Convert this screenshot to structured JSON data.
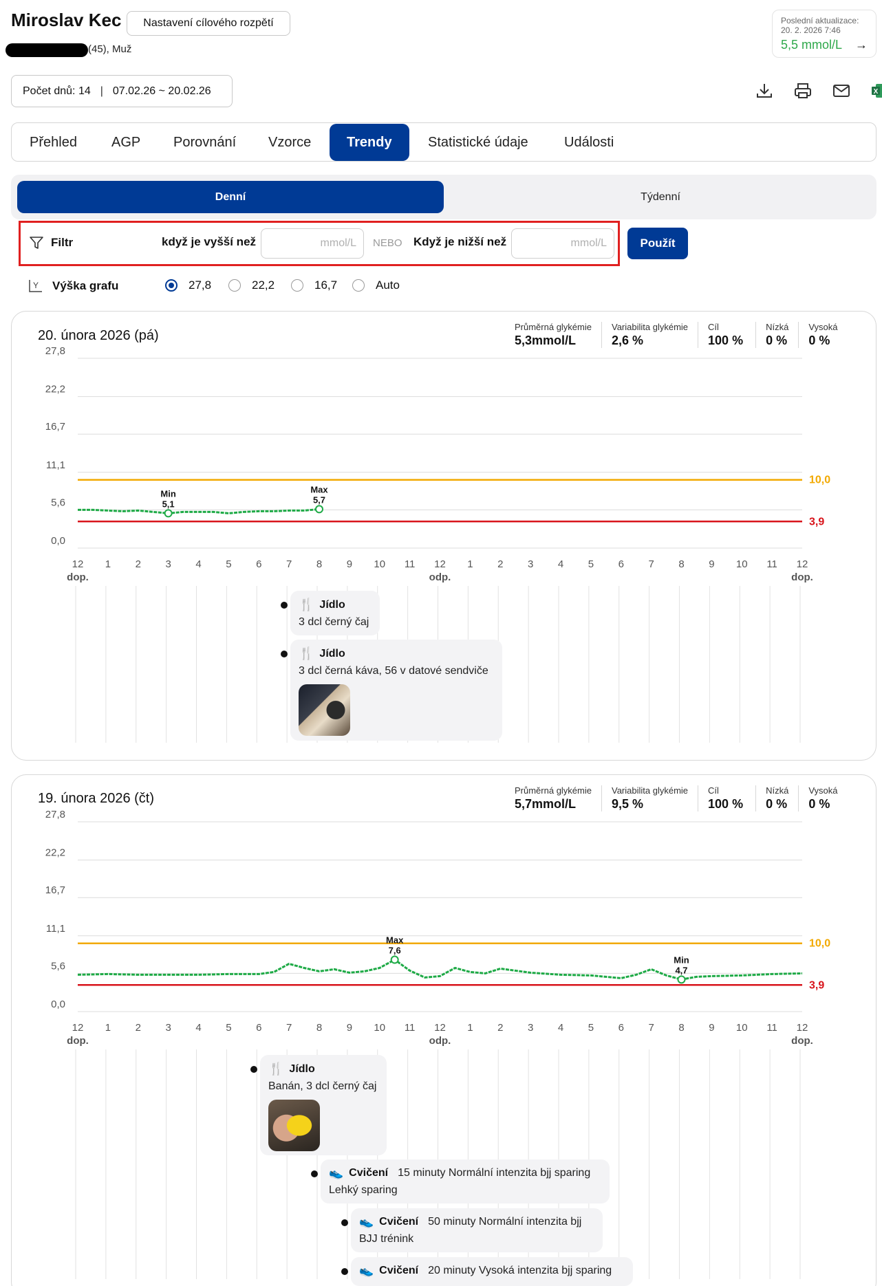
{
  "header": {
    "patient_name": "Miroslav Kec",
    "patient_info": "(45), Muž",
    "target_button": "Nastavení cílového rozpětí",
    "last_update_label": "Poslední aktualizace:",
    "last_update_time": "20. 2. 2026 7:46",
    "last_update_value": "5,5 mmol/L",
    "days_count": "Počet dnů: 14",
    "date_range": "07.02.26 ~ 20.02.26",
    "toolbar_icons": [
      "download-icon",
      "print-icon",
      "mail-icon",
      "excel-icon"
    ]
  },
  "tabs": [
    "Přehled",
    "AGP",
    "Porovnání",
    "Vzorce",
    "Trendy",
    "Statistické údaje",
    "Události"
  ],
  "active_tab": "Trendy",
  "view_toggle": {
    "daily": "Denní",
    "weekly": "Týdenní",
    "active": "Denní"
  },
  "filter": {
    "label": "Filtr",
    "above_label": "když je vyšší než",
    "above_placeholder": "mmol/L",
    "or_label": "NEBO",
    "below_label": "Když je nižší než",
    "below_placeholder": "mmol/L",
    "apply_button": "Použít"
  },
  "chart_height": {
    "label": "Výška grafu",
    "options": [
      "27,8",
      "22,2",
      "16,7",
      "Auto"
    ],
    "selected": "27,8"
  },
  "stat_labels": {
    "avg": "Průměrná glykémie",
    "variability": "Variabilita glykémie",
    "target": "Cíl",
    "low": "Nízká",
    "high": "Vysoká"
  },
  "x_ticks": [
    "12",
    "1",
    "2",
    "3",
    "4",
    "5",
    "6",
    "7",
    "8",
    "9",
    "10",
    "11",
    "12",
    "1",
    "2",
    "3",
    "4",
    "5",
    "6",
    "7",
    "8",
    "9",
    "10",
    "11",
    "12"
  ],
  "x_subticks": {
    "am": "dop.",
    "pm": "odp."
  },
  "y_ticks": [
    "27,8",
    "22,2",
    "16,7",
    "11,1",
    "5,6",
    "0,0"
  ],
  "limits": {
    "high": "10,0",
    "low": "3,9",
    "high_color": "#f2a900",
    "low_color": "#d8141b",
    "line_color": "#1eaa46"
  },
  "days": [
    {
      "title": "20. února 2026 (pá)",
      "stats": {
        "avg": "5,3mmol/L",
        "variability": "2,6 %",
        "target": "100 %",
        "low": "0 %",
        "high": "0 %"
      },
      "min_label": "Min",
      "min_value": "5,1",
      "max_label": "Max",
      "max_value": "5,7",
      "events": [
        {
          "type": "Jídlo",
          "icon": "fork-knife-icon",
          "desc": "3 dcl černý čaj"
        },
        {
          "type": "Jídlo",
          "icon": "fork-knife-icon",
          "desc": "3 dcl černá káva, 56 v datové sendviče",
          "photo": "sandwich-photo"
        }
      ]
    },
    {
      "title": "19. února 2026 (čt)",
      "stats": {
        "avg": "5,7mmol/L",
        "variability": "9,5 %",
        "target": "100 %",
        "low": "0 %",
        "high": "0 %"
      },
      "min_label": "Min",
      "min_value": "4,7",
      "max_label": "Max",
      "max_value": "7,6",
      "events": [
        {
          "type": "Jídlo",
          "icon": "fork-knife-icon",
          "desc": "Banán, 3 dcl černý čaj",
          "photo": "banana-photo"
        },
        {
          "type": "Cvičení",
          "icon": "shoe-icon",
          "inline": "15 minuty Normální intenzita bjj sparing",
          "desc": "Lehký sparing"
        },
        {
          "type": "Cvičení",
          "icon": "shoe-icon",
          "inline": "50 minuty Normální intenzita bjj",
          "desc": "BJJ trénink"
        },
        {
          "type": "Cvičení",
          "icon": "shoe-icon",
          "inline": "20 minuty Vysoká intenzita bjj sparing"
        }
      ]
    }
  ],
  "chart_data": [
    {
      "type": "line",
      "title": "20. února 2026 (pá)",
      "xlabel": "",
      "ylabel": "",
      "ylim": [
        0,
        27.8
      ],
      "xlim_hours": [
        0,
        24
      ],
      "grid": true,
      "thresholds": [
        10.0,
        3.9
      ],
      "series": [
        {
          "x": [
            0,
            0.5,
            1,
            1.5,
            2,
            2.5,
            3,
            3.5,
            4,
            4.5,
            5,
            5.5,
            6,
            6.5,
            7,
            7.5,
            8
          ],
          "y": [
            5.6,
            5.6,
            5.5,
            5.4,
            5.5,
            5.3,
            5.1,
            5.3,
            5.3,
            5.3,
            5.1,
            5.3,
            5.4,
            5.4,
            5.5,
            5.5,
            5.7
          ]
        }
      ],
      "annotations": [
        {
          "label": "Min 5,1",
          "x": 3,
          "y": 5.1
        },
        {
          "label": "Max 5,7",
          "x": 8,
          "y": 5.7
        }
      ]
    },
    {
      "type": "line",
      "title": "19. února 2026 (čt)",
      "xlabel": "",
      "ylabel": "",
      "ylim": [
        0,
        27.8
      ],
      "xlim_hours": [
        0,
        24
      ],
      "grid": true,
      "thresholds": [
        10.0,
        3.9
      ],
      "series": [
        {
          "x": [
            0,
            1,
            2,
            3,
            4,
            5,
            6,
            6.5,
            7,
            7.5,
            8,
            8.5,
            9,
            9.5,
            10,
            10.5,
            11,
            11.5,
            12,
            12.5,
            13,
            13.5,
            14,
            15,
            16,
            17,
            18,
            18.5,
            19,
            19.5,
            20,
            20.5,
            21,
            22,
            23,
            24
          ],
          "y": [
            5.4,
            5.5,
            5.4,
            5.4,
            5.4,
            5.5,
            5.5,
            5.8,
            7.0,
            6.4,
            5.9,
            6.2,
            5.7,
            5.9,
            6.4,
            7.6,
            6.0,
            5.0,
            5.2,
            6.4,
            5.8,
            5.6,
            6.3,
            5.7,
            5.4,
            5.3,
            4.9,
            5.4,
            6.2,
            5.3,
            4.7,
            5.1,
            5.2,
            5.3,
            5.5,
            5.6
          ]
        }
      ],
      "annotations": [
        {
          "label": "Max 7,6",
          "x": 10.5,
          "y": 7.6
        },
        {
          "label": "Min 4,7",
          "x": 20,
          "y": 4.7
        }
      ]
    }
  ]
}
